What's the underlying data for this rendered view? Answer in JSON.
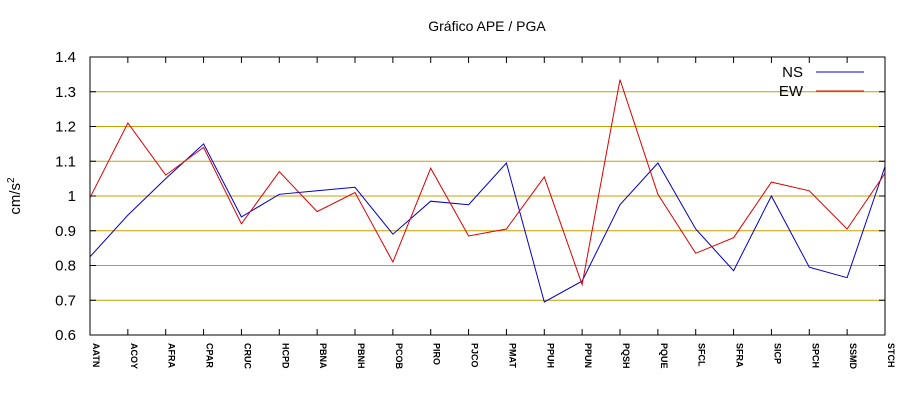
{
  "chart_data": {
    "type": "line",
    "title": "Gráfico  APE / PGA",
    "ylabel": "cm/s",
    "ylabel_superscript": "2",
    "xlabel": "",
    "ylim": [
      0.6,
      1.4
    ],
    "yticks": [
      "0.6",
      "0.7",
      "0.8",
      "0.9",
      "1",
      "1.1",
      "1.2",
      "1.3",
      "1.4"
    ],
    "grid": true,
    "legend_position": "top-right",
    "categories": [
      "AATN",
      "ACOY",
      "AFRA",
      "CPAR",
      "CRUC",
      "HCPD",
      "PBNA",
      "PBNH",
      "PCOB",
      "PIRO",
      "PJCO",
      "PMAT",
      "PPUH",
      "PPUN",
      "PQSH",
      "PQUE",
      "SFCL",
      "SFRA",
      "SICP",
      "SPCH",
      "SSMD",
      "STCH"
    ],
    "series": [
      {
        "name": "NS",
        "color": "#0000cc",
        "values": [
          0.825,
          0.945,
          1.05,
          1.15,
          0.94,
          1.005,
          1.015,
          1.025,
          0.89,
          0.985,
          0.975,
          1.095,
          0.695,
          0.755,
          0.975,
          1.095,
          0.905,
          0.785,
          1.0,
          0.795,
          0.765,
          1.085
        ]
      },
      {
        "name": "EW",
        "color": "#dd0000",
        "values": [
          0.995,
          1.21,
          1.06,
          1.14,
          0.92,
          1.07,
          0.955,
          1.01,
          0.81,
          1.08,
          0.885,
          0.905,
          1.055,
          0.745,
          1.335,
          1.005,
          0.835,
          0.88,
          1.04,
          1.015,
          0.905,
          1.065
        ]
      }
    ]
  }
}
